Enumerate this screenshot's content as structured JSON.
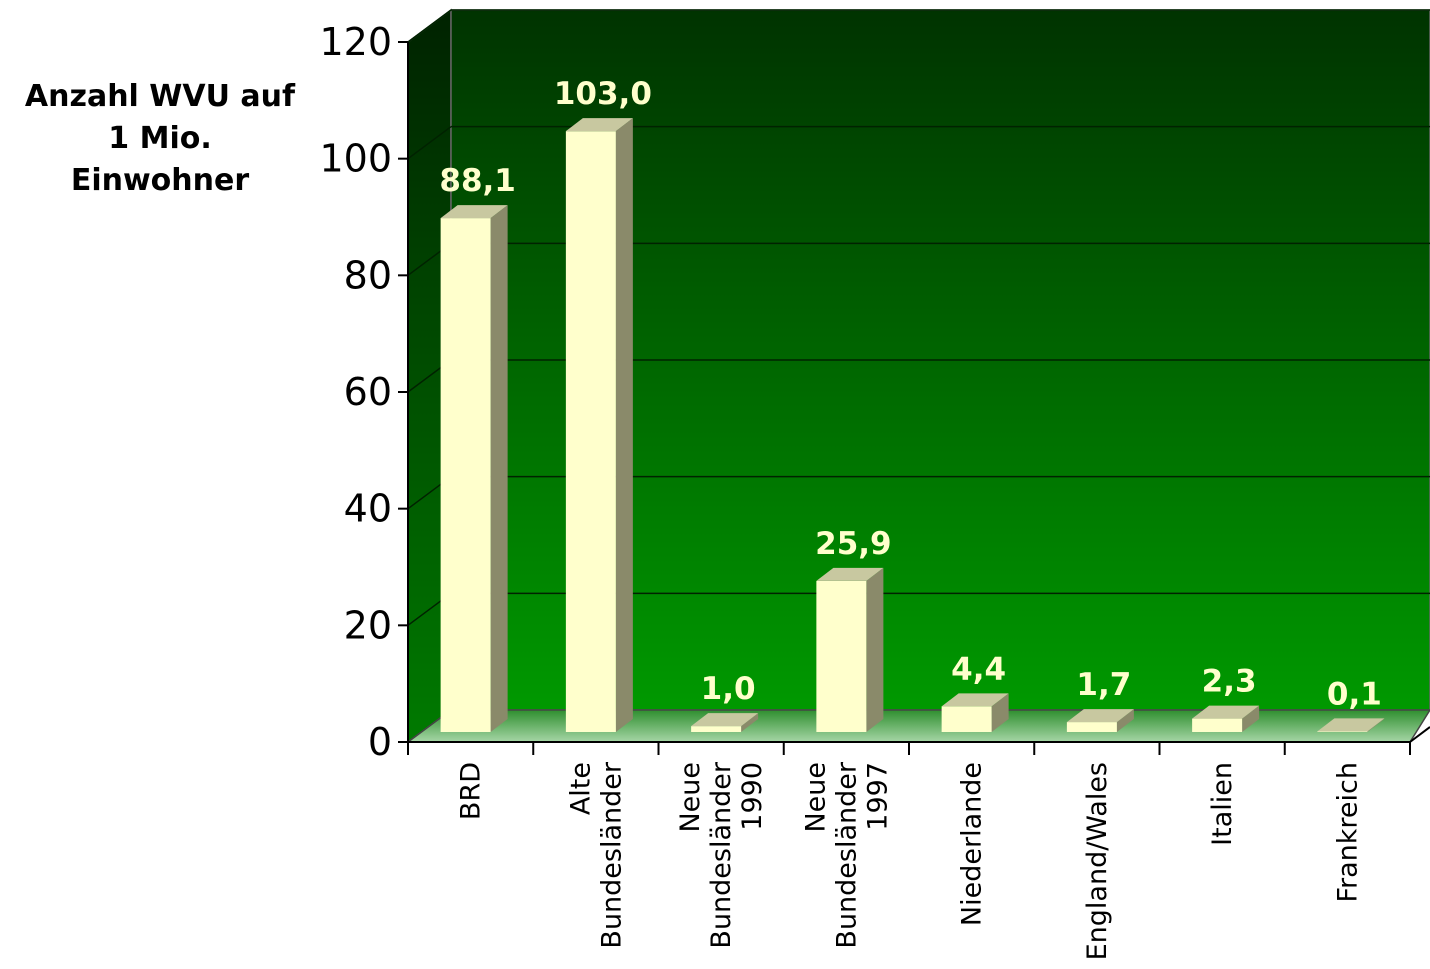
{
  "chart_data": {
    "type": "bar",
    "ylabel": "Anzahl WVU auf\n1 Mio.\nEinwohner",
    "ylim": [
      0,
      120
    ],
    "y_ticks": [
      "0",
      "20",
      "40",
      "60",
      "80",
      "100",
      "120"
    ],
    "y_tick_values": [
      0,
      20,
      40,
      60,
      80,
      100,
      120
    ],
    "grid": true,
    "legend": "none",
    "categories": [
      [
        "BRD"
      ],
      [
        "Alte",
        "Bundesländer"
      ],
      [
        "Neue",
        "Bundesländer",
        "1990"
      ],
      [
        "Neue",
        "Bundesländer",
        "1997"
      ],
      [
        "Niederlande"
      ],
      [
        "England/Wales"
      ],
      [
        "Italien"
      ],
      [
        "Frankreich"
      ]
    ],
    "values": [
      88.1,
      103.0,
      1.0,
      25.9,
      4.4,
      1.7,
      2.3,
      0.1
    ],
    "value_labels": [
      "88,1",
      "103,0",
      "1,0",
      "25,9",
      "4,4",
      "1,7",
      "2,3",
      "0,1"
    ],
    "colors": {
      "bar_front": "#ffffcc",
      "bar_side": "#8a8a6a",
      "bar_top": "#c8c8a0",
      "wall_top": "#003300",
      "wall_bottom": "#009900",
      "floor": "#a6d6a6",
      "value_label": "#ffffcc",
      "gridline": "#002200"
    }
  }
}
